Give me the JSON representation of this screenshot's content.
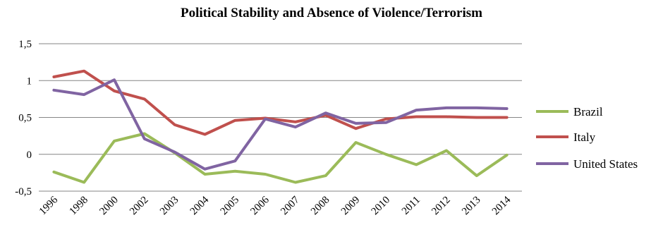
{
  "chart_data": {
    "type": "line",
    "title": "Political Stability  and Absence of Violence/Terrorism",
    "xlabel": "",
    "ylabel": "",
    "ylim": [
      -0.5,
      1.5
    ],
    "yticks": [
      -0.5,
      0,
      0.5,
      1,
      1.5
    ],
    "ytick_labels": [
      "-0,5",
      "0",
      "0,5",
      "1",
      "1,5"
    ],
    "grid": true,
    "legend_position": "right",
    "categories": [
      "1996",
      "1998",
      "2000",
      "2002",
      "2003",
      "2004",
      "2005",
      "2006",
      "2007",
      "2008",
      "2009",
      "2010",
      "2011",
      "2012",
      "2013",
      "2014"
    ],
    "series": [
      {
        "name": "Brazil",
        "color": "#9BBB59",
        "values": [
          -0.24,
          -0.38,
          0.18,
          0.28,
          0.02,
          -0.27,
          -0.23,
          -0.27,
          -0.38,
          -0.29,
          0.16,
          0.0,
          -0.14,
          0.05,
          -0.29,
          -0.01
        ]
      },
      {
        "name": "Italy",
        "color": "#C0504D",
        "values": [
          1.05,
          1.13,
          0.86,
          0.75,
          0.4,
          0.27,
          0.46,
          0.49,
          0.44,
          0.53,
          0.35,
          0.48,
          0.51,
          0.51,
          0.5,
          0.5
        ]
      },
      {
        "name": "United States",
        "color": "#8064A2",
        "values": [
          0.87,
          0.81,
          1.01,
          0.21,
          0.03,
          -0.2,
          -0.09,
          0.48,
          0.37,
          0.56,
          0.42,
          0.43,
          0.6,
          0.63,
          0.63,
          0.62
        ]
      }
    ]
  }
}
